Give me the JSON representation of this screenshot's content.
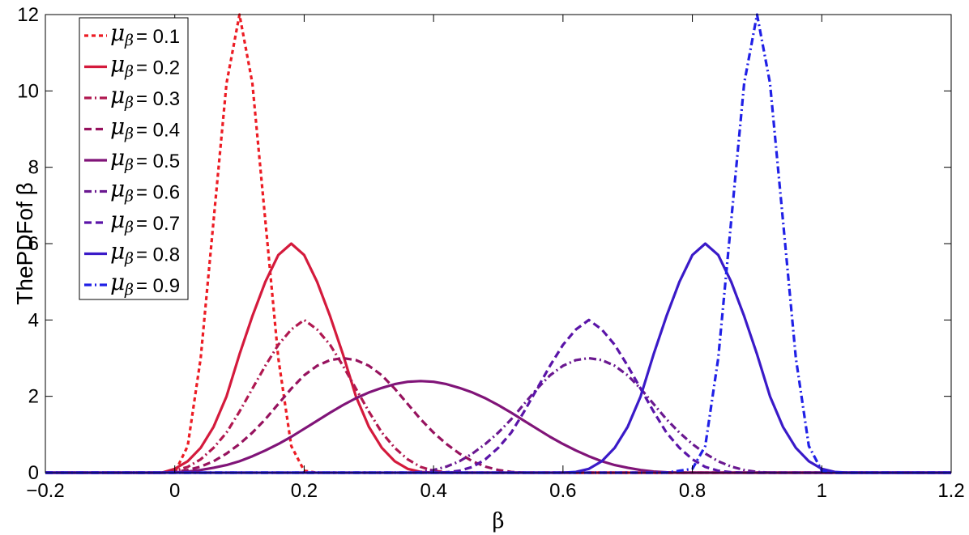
{
  "chart_data": {
    "type": "line",
    "xlabel": "β",
    "ylabel": "ThePDFof β",
    "xlim": [
      -0.2,
      1.2
    ],
    "ylim": [
      0,
      12
    ],
    "xticks": [
      "−0.2",
      "0",
      "0.2",
      "0.4",
      "0.6",
      "0.8",
      "1",
      "1.2"
    ],
    "xtick_values": [
      -0.2,
      0,
      0.2,
      0.4,
      0.6,
      0.8,
      1,
      1.2
    ],
    "yticks": [
      "0",
      "2",
      "4",
      "6",
      "8",
      "10",
      "12"
    ],
    "ytick_values": [
      0,
      2,
      4,
      6,
      8,
      10,
      12
    ],
    "grid": false,
    "legend_position": "top-left",
    "legend_symbol": "μ",
    "legend_subscript": "β",
    "x": [
      -0.2,
      -0.18,
      -0.16,
      -0.14,
      -0.12,
      -0.1,
      -0.08,
      -0.06,
      -0.04,
      -0.02,
      0,
      0.02,
      0.04,
      0.06,
      0.08,
      0.1,
      0.12,
      0.14,
      0.16,
      0.18,
      0.2,
      0.22,
      0.24,
      0.26,
      0.28,
      0.3,
      0.32,
      0.34,
      0.36,
      0.38,
      0.4,
      0.42,
      0.44,
      0.46,
      0.48,
      0.5,
      0.52,
      0.54,
      0.56,
      0.58,
      0.6,
      0.62,
      0.64,
      0.66,
      0.68,
      0.7,
      0.72,
      0.74,
      0.76,
      0.78,
      0.8,
      0.82,
      0.84,
      0.86,
      0.88,
      0.9,
      0.92,
      0.94,
      0.96,
      0.98,
      1,
      1.02,
      1.04,
      1.06,
      1.08,
      1.1,
      1.12,
      1.14,
      1.16,
      1.18,
      1.2
    ],
    "series": [
      {
        "name": "= 0.1",
        "color": "#ec1c24",
        "dash": "dotted",
        "values": [
          0,
          0,
          0,
          0,
          0,
          0,
          0,
          0,
          0,
          0,
          0,
          0.7,
          3,
          6.6,
          10.2,
          12,
          10.2,
          6.6,
          3,
          0.7,
          0.05,
          0,
          0,
          0,
          0,
          0,
          0,
          0,
          0,
          0,
          0,
          0,
          0,
          0,
          0,
          0,
          0,
          0,
          0,
          0,
          0,
          0,
          0,
          0,
          0,
          0,
          0,
          0,
          0,
          0,
          0,
          0,
          0,
          0,
          0,
          0,
          0,
          0,
          0,
          0,
          0,
          0,
          0,
          0,
          0,
          0,
          0,
          0,
          0,
          0,
          0
        ]
      },
      {
        "name": "= 0.2",
        "color": "#d41a3c",
        "dash": "solid",
        "values": [
          0,
          0,
          0,
          0,
          0,
          0,
          0,
          0,
          0,
          0,
          0.1,
          0.3,
          0.65,
          1.2,
          2,
          3.1,
          4.1,
          5,
          5.7,
          6,
          5.7,
          5,
          4.1,
          3.1,
          2,
          1.2,
          0.65,
          0.3,
          0.1,
          0.02,
          0,
          0,
          0,
          0,
          0,
          0,
          0,
          0,
          0,
          0,
          0,
          0,
          0,
          0,
          0,
          0,
          0,
          0,
          0,
          0,
          0,
          0,
          0,
          0,
          0,
          0,
          0,
          0,
          0,
          0,
          0,
          0,
          0,
          0,
          0,
          0,
          0,
          0,
          0,
          0,
          0
        ]
      },
      {
        "name": "= 0.3",
        "color": "#b01850",
        "dash": "dashdot",
        "values": [
          0,
          0,
          0,
          0,
          0,
          0,
          0,
          0,
          0,
          0,
          0.05,
          0.15,
          0.35,
          0.65,
          1.05,
          1.6,
          2.2,
          2.8,
          3.35,
          3.75,
          4,
          3.75,
          3.35,
          2.8,
          2.2,
          1.6,
          1.05,
          0.65,
          0.35,
          0.15,
          0.05,
          0.01,
          0,
          0,
          0,
          0,
          0,
          0,
          0,
          0,
          0,
          0,
          0,
          0,
          0,
          0,
          0,
          0,
          0,
          0,
          0,
          0,
          0,
          0,
          0,
          0,
          0,
          0,
          0,
          0,
          0,
          0,
          0,
          0,
          0,
          0,
          0,
          0,
          0,
          0,
          0
        ]
      },
      {
        "name": "= 0.4",
        "color": "#96125e",
        "dash": "dashed",
        "values": [
          0,
          0,
          0,
          0,
          0,
          0,
          0,
          0,
          0,
          0,
          0.02,
          0.07,
          0.16,
          0.3,
          0.5,
          0.75,
          1.05,
          1.4,
          1.8,
          2.2,
          2.55,
          2.8,
          2.95,
          3,
          2.95,
          2.8,
          2.55,
          2.2,
          1.8,
          1.4,
          1.05,
          0.75,
          0.5,
          0.3,
          0.16,
          0.07,
          0.02,
          0,
          0,
          0,
          0,
          0,
          0,
          0,
          0,
          0,
          0,
          0,
          0,
          0,
          0,
          0,
          0,
          0,
          0,
          0,
          0,
          0,
          0,
          0,
          0,
          0,
          0,
          0,
          0,
          0,
          0,
          0,
          0,
          0,
          0
        ]
      },
      {
        "name": "= 0.5",
        "color": "#801478",
        "dash": "solid",
        "values": [
          0,
          0,
          0,
          0,
          0,
          0,
          0,
          0,
          0,
          0,
          0.01,
          0.03,
          0.07,
          0.13,
          0.2,
          0.3,
          0.43,
          0.58,
          0.75,
          0.94,
          1.15,
          1.36,
          1.57,
          1.77,
          1.95,
          2.1,
          2.22,
          2.32,
          2.38,
          2.4,
          2.38,
          2.32,
          2.22,
          2.1,
          1.95,
          1.77,
          1.57,
          1.36,
          1.15,
          0.94,
          0.75,
          0.58,
          0.43,
          0.3,
          0.2,
          0.13,
          0.07,
          0.03,
          0.01,
          0,
          0,
          0,
          0,
          0,
          0,
          0,
          0,
          0,
          0,
          0,
          0,
          0,
          0,
          0,
          0,
          0,
          0,
          0,
          0,
          0,
          0
        ]
      },
      {
        "name": "= 0.6",
        "color": "#6a1890",
        "dash": "dashdot",
        "values": [
          0,
          0,
          0,
          0,
          0,
          0,
          0,
          0,
          0,
          0,
          0,
          0,
          0,
          0,
          0,
          0,
          0,
          0,
          0,
          0,
          0,
          0,
          0,
          0,
          0,
          0,
          0,
          0,
          0,
          0.02,
          0.07,
          0.16,
          0.3,
          0.5,
          0.75,
          1.05,
          1.4,
          1.8,
          2.2,
          2.55,
          2.8,
          2.95,
          3,
          2.95,
          2.8,
          2.55,
          2.2,
          1.8,
          1.4,
          1.05,
          0.75,
          0.5,
          0.3,
          0.16,
          0.07,
          0.02,
          0,
          0,
          0,
          0,
          0,
          0,
          0,
          0,
          0,
          0,
          0,
          0,
          0,
          0,
          0
        ]
      },
      {
        "name": "= 0.7",
        "color": "#5a14a8",
        "dash": "dashed",
        "values": [
          0,
          0,
          0,
          0,
          0,
          0,
          0,
          0,
          0,
          0,
          0,
          0,
          0,
          0,
          0,
          0,
          0,
          0,
          0,
          0,
          0,
          0,
          0,
          0,
          0,
          0,
          0,
          0,
          0,
          0,
          0,
          0.01,
          0.05,
          0.15,
          0.35,
          0.65,
          1.05,
          1.6,
          2.2,
          2.8,
          3.35,
          3.75,
          4,
          3.75,
          3.35,
          2.8,
          2.2,
          1.6,
          1.05,
          0.65,
          0.35,
          0.15,
          0.05,
          0.01,
          0,
          0,
          0,
          0,
          0,
          0,
          0,
          0,
          0,
          0,
          0,
          0,
          0,
          0,
          0,
          0,
          0
        ]
      },
      {
        "name": "= 0.8",
        "color": "#3a1ac8",
        "dash": "solid",
        "values": [
          0,
          0,
          0,
          0,
          0,
          0,
          0,
          0,
          0,
          0,
          0,
          0,
          0,
          0,
          0,
          0,
          0,
          0,
          0,
          0,
          0,
          0,
          0,
          0,
          0,
          0,
          0,
          0,
          0,
          0,
          0,
          0,
          0,
          0,
          0,
          0,
          0,
          0,
          0,
          0,
          0,
          0.02,
          0.1,
          0.3,
          0.65,
          1.2,
          2,
          3.1,
          4.1,
          5,
          5.7,
          6,
          5.7,
          5,
          4.1,
          3.1,
          2,
          1.2,
          0.65,
          0.3,
          0.1,
          0.02,
          0,
          0,
          0,
          0,
          0,
          0,
          0,
          0,
          0
        ]
      },
      {
        "name": "= 0.9",
        "color": "#2020e6",
        "dash": "dashdot",
        "values": [
          0,
          0,
          0,
          0,
          0,
          0,
          0,
          0,
          0,
          0,
          0,
          0,
          0,
          0,
          0,
          0,
          0,
          0,
          0,
          0,
          0,
          0,
          0,
          0,
          0,
          0,
          0,
          0,
          0,
          0,
          0,
          0,
          0,
          0,
          0,
          0,
          0,
          0,
          0,
          0,
          0,
          0,
          0,
          0,
          0,
          0,
          0,
          0,
          0,
          0.05,
          0.1,
          0.7,
          3,
          6.6,
          10.2,
          12,
          10.2,
          6.6,
          3,
          0.7,
          0.05,
          0,
          0,
          0,
          0,
          0,
          0,
          0,
          0,
          0,
          0
        ]
      }
    ]
  }
}
